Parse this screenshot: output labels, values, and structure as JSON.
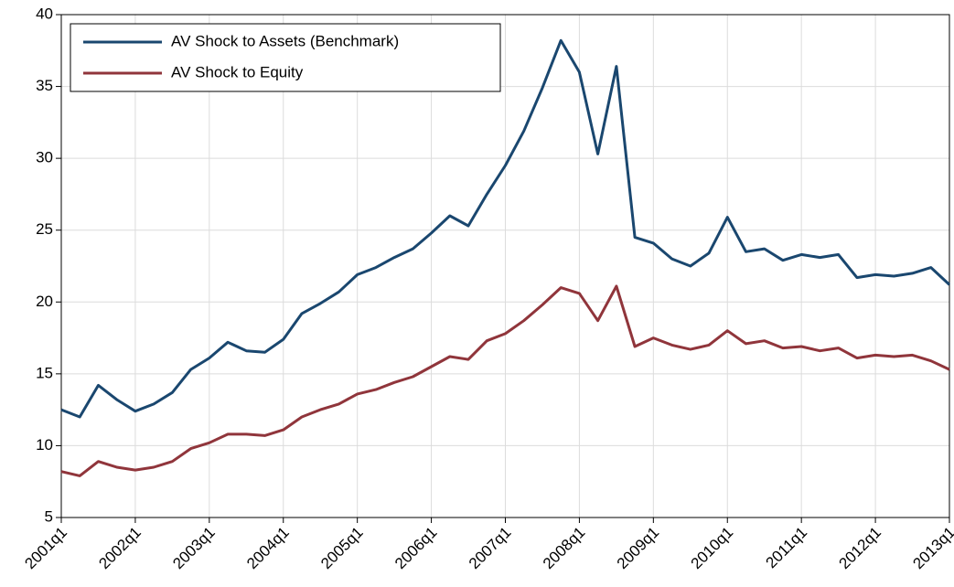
{
  "chart_data": {
    "type": "line",
    "categories": [
      "2001q1",
      null,
      null,
      null,
      "2002q1",
      null,
      null,
      null,
      "2003q1",
      null,
      null,
      null,
      "2004q1",
      null,
      null,
      null,
      "2005q1",
      null,
      null,
      null,
      "2006q1",
      null,
      null,
      null,
      "2007q1",
      null,
      null,
      null,
      "2008q1",
      null,
      null,
      null,
      "2009q1",
      null,
      null,
      null,
      "2010q1",
      null,
      null,
      null,
      "2011q1",
      null,
      null,
      null,
      "2012q1",
      null,
      null,
      null,
      "2013q1"
    ],
    "series": [
      {
        "name": "AV Shock to Assets (Benchmark)",
        "color": "#1a476f",
        "values": [
          12.5,
          12.0,
          14.2,
          13.2,
          12.4,
          12.9,
          13.7,
          15.3,
          16.1,
          17.2,
          16.6,
          16.5,
          17.4,
          19.2,
          19.9,
          20.7,
          21.9,
          22.4,
          23.1,
          23.7,
          24.8,
          26.0,
          25.3,
          27.5,
          29.5,
          31.9,
          34.9,
          38.2,
          36.0,
          30.3,
          36.4,
          24.5,
          24.1,
          23.0,
          22.5,
          23.4,
          25.9,
          23.5,
          23.7,
          22.9,
          23.3,
          23.1,
          23.3,
          21.7,
          21.9,
          21.8,
          22.0,
          22.4,
          21.2
        ]
      },
      {
        "name": "AV Shock to Equity",
        "color": "#90353b",
        "values": [
          8.2,
          7.9,
          8.9,
          8.5,
          8.3,
          8.5,
          8.9,
          9.8,
          10.2,
          10.8,
          10.8,
          10.7,
          11.1,
          12.0,
          12.5,
          12.9,
          13.6,
          13.9,
          14.4,
          14.8,
          15.5,
          16.2,
          16.0,
          17.3,
          17.8,
          18.7,
          19.8,
          21.0,
          20.6,
          18.7,
          21.1,
          16.9,
          17.5,
          17.0,
          16.7,
          17.0,
          18.0,
          17.1,
          17.3,
          16.8,
          16.9,
          16.6,
          16.8,
          16.1,
          16.3,
          16.2,
          16.3,
          15.9,
          15.3
        ]
      }
    ],
    "ylim": [
      5,
      40
    ],
    "yticks": [
      5,
      10,
      15,
      20,
      25,
      30,
      35,
      40
    ],
    "grid": true,
    "legend": "upper left"
  }
}
